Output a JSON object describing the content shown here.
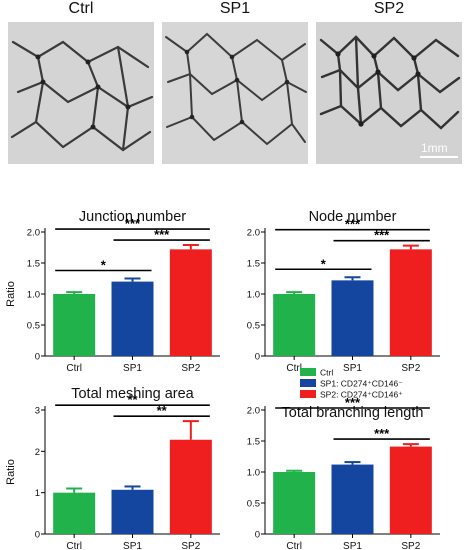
{
  "panels": [
    {
      "label": "Ctrl"
    },
    {
      "label": "SP1"
    },
    {
      "label": "SP2"
    }
  ],
  "scale_bar_label": "1mm",
  "legend": [
    {
      "label": "Ctrl",
      "color": "#22b24c"
    },
    {
      "label": "SP1: CD274⁺CD146⁻",
      "color": "#1446a0"
    },
    {
      "label": "SP2: CD274⁺CD146⁺",
      "color": "#ef1f1f"
    }
  ],
  "chart_data": [
    {
      "type": "bar",
      "title": "Junction number",
      "ylabel": "Ratio",
      "ylim": [
        0,
        2.0
      ],
      "yticks": [
        "0",
        "0.5",
        "1.0",
        "1.5",
        "2.0"
      ],
      "categories": [
        "Ctrl",
        "SP1",
        "SP2"
      ],
      "values": [
        1.0,
        1.2,
        1.72
      ],
      "errors": [
        0.03,
        0.05,
        0.07
      ],
      "colors": [
        "#22b24c",
        "#1446a0",
        "#ef1f1f"
      ],
      "significance": [
        {
          "from": "Ctrl",
          "to": "SP1",
          "label": "*"
        },
        {
          "from": "SP1",
          "to": "SP2",
          "label": "***"
        },
        {
          "from": "Ctrl",
          "to": "SP2",
          "label": "***"
        }
      ]
    },
    {
      "type": "bar",
      "title": "Node number",
      "ylabel": "",
      "ylim": [
        0,
        2.0
      ],
      "yticks": [
        "0",
        "0.5",
        "1.0",
        "1.5",
        "2.0"
      ],
      "categories": [
        "Ctrl",
        "SP1",
        "SP2"
      ],
      "values": [
        1.0,
        1.22,
        1.72
      ],
      "errors": [
        0.03,
        0.05,
        0.06
      ],
      "colors": [
        "#22b24c",
        "#1446a0",
        "#ef1f1f"
      ],
      "significance": [
        {
          "from": "Ctrl",
          "to": "SP1",
          "label": "*"
        },
        {
          "from": "SP1",
          "to": "SP2",
          "label": "***"
        },
        {
          "from": "Ctrl",
          "to": "SP2",
          "label": "***"
        }
      ]
    },
    {
      "type": "bar",
      "title": "Total meshing area",
      "ylabel": "Ratio",
      "ylim": [
        0,
        3
      ],
      "yticks": [
        "0",
        "1",
        "2",
        "3"
      ],
      "categories": [
        "Ctrl",
        "SP1",
        "SP2"
      ],
      "values": [
        1.0,
        1.07,
        2.28
      ],
      "errors": [
        0.1,
        0.08,
        0.45
      ],
      "colors": [
        "#22b24c",
        "#1446a0",
        "#ef1f1f"
      ],
      "significance": [
        {
          "from": "SP1",
          "to": "SP2",
          "label": "**"
        },
        {
          "from": "Ctrl",
          "to": "SP2",
          "label": "**"
        }
      ]
    },
    {
      "type": "bar",
      "title": "Total branching length",
      "ylabel": "",
      "ylim": [
        0,
        2.0
      ],
      "yticks": [
        "0",
        "0.5",
        "1.0",
        "1.5",
        "2.0"
      ],
      "categories": [
        "Ctrl",
        "SP1",
        "SP2"
      ],
      "values": [
        1.0,
        1.12,
        1.41
      ],
      "errors": [
        0.02,
        0.04,
        0.04
      ],
      "colors": [
        "#22b24c",
        "#1446a0",
        "#ef1f1f"
      ],
      "significance": [
        {
          "from": "SP1",
          "to": "SP2",
          "label": "***"
        },
        {
          "from": "Ctrl",
          "to": "SP2",
          "label": "***"
        }
      ]
    }
  ]
}
